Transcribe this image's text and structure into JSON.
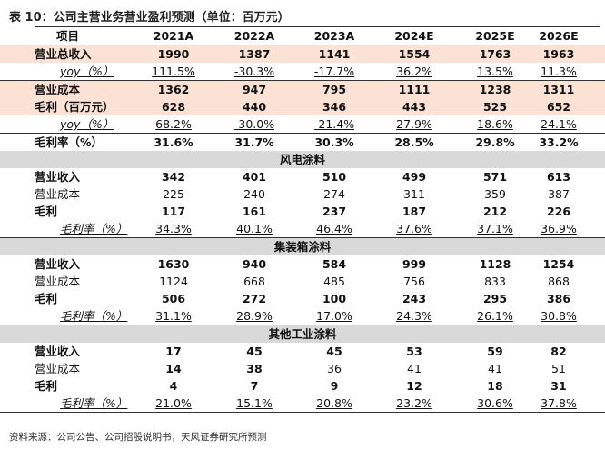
{
  "title": "表 10：公司主营业务营业盈利预测（单位：百万元）",
  "header": {
    "label": "项目",
    "years": [
      "2021A",
      "2022A",
      "2023A",
      "2024E",
      "2025E",
      "2026E"
    ]
  },
  "rows": [
    {
      "label": "营业总收入",
      "values": [
        "1990",
        "1387",
        "1141",
        "1554",
        "1763",
        "1963"
      ],
      "bold": true,
      "shade": true
    },
    {
      "label": "yoy（%）",
      "values": [
        "111.5%",
        "-30.3%",
        "-17.7%",
        "36.2%",
        "13.5%",
        "11.3%"
      ],
      "indent": true
    },
    {
      "label": "营业成本",
      "values": [
        "1362",
        "947",
        "795",
        "1111",
        "1238",
        "1311"
      ],
      "bold": true,
      "shade": true
    },
    {
      "label": "毛利（百万元）",
      "values": [
        "628",
        "440",
        "346",
        "443",
        "525",
        "652"
      ],
      "bold": true,
      "shade": true
    },
    {
      "label": "yoy（%）",
      "values": [
        "68.2%",
        "-30.0%",
        "-21.4%",
        "27.9%",
        "18.6%",
        "24.1%"
      ],
      "indent": true
    },
    {
      "label": "毛利率（%）",
      "values": [
        "31.6%",
        "31.7%",
        "30.3%",
        "28.5%",
        "29.8%",
        "33.2%"
      ],
      "bold": true
    }
  ],
  "sections": [
    {
      "title": "风电涂料",
      "rows": [
        {
          "label": "营业收入",
          "values": [
            "342",
            "401",
            "510",
            "499",
            "571",
            "613"
          ],
          "bold": true
        },
        {
          "label": "营业成本",
          "values": [
            "225",
            "240",
            "274",
            "311",
            "359",
            "387"
          ]
        },
        {
          "label": "毛利",
          "values": [
            "117",
            "161",
            "237",
            "187",
            "212",
            "226"
          ],
          "bold": true
        },
        {
          "label": "毛利率（%）",
          "values": [
            "34.3%",
            "40.1%",
            "46.4%",
            "37.6%",
            "37.1%",
            "36.9%"
          ],
          "indent": true
        }
      ]
    },
    {
      "title": "集装箱涂料",
      "rows": [
        {
          "label": "营业收入",
          "values": [
            "1630",
            "940",
            "584",
            "999",
            "1128",
            "1254"
          ],
          "bold": true
        },
        {
          "label": "营业成本",
          "values": [
            "1124",
            "668",
            "485",
            "756",
            "833",
            "868"
          ]
        },
        {
          "label": "毛利",
          "values": [
            "506",
            "272",
            "100",
            "243",
            "295",
            "386"
          ],
          "bold": true
        },
        {
          "label": "毛利率（%）",
          "values": [
            "31.1%",
            "28.9%",
            "17.0%",
            "24.3%",
            "26.1%",
            "30.8%"
          ],
          "indent": true
        }
      ]
    },
    {
      "title": "其他工业涂料",
      "rows": [
        {
          "label": "营业收入",
          "values": [
            "17",
            "45",
            "45",
            "53",
            "59",
            "82"
          ],
          "bold": true
        },
        {
          "label": "营业成本",
          "values": [
            "14",
            "38",
            "36",
            "41",
            "41",
            "51"
          ],
          "bold_values": [
            true,
            true,
            false,
            false,
            false,
            false
          ]
        },
        {
          "label": "毛利",
          "values": [
            "4",
            "7",
            "9",
            "12",
            "18",
            "31"
          ],
          "bold": true
        },
        {
          "label": "毛利率（%）",
          "values": [
            "21.0%",
            "15.1%",
            "20.8%",
            "23.2%",
            "30.6%",
            "37.8%"
          ],
          "indent": true
        }
      ]
    }
  ],
  "source": "资料来源：公司公告、公司招股说明书，天风证券研究所预测"
}
